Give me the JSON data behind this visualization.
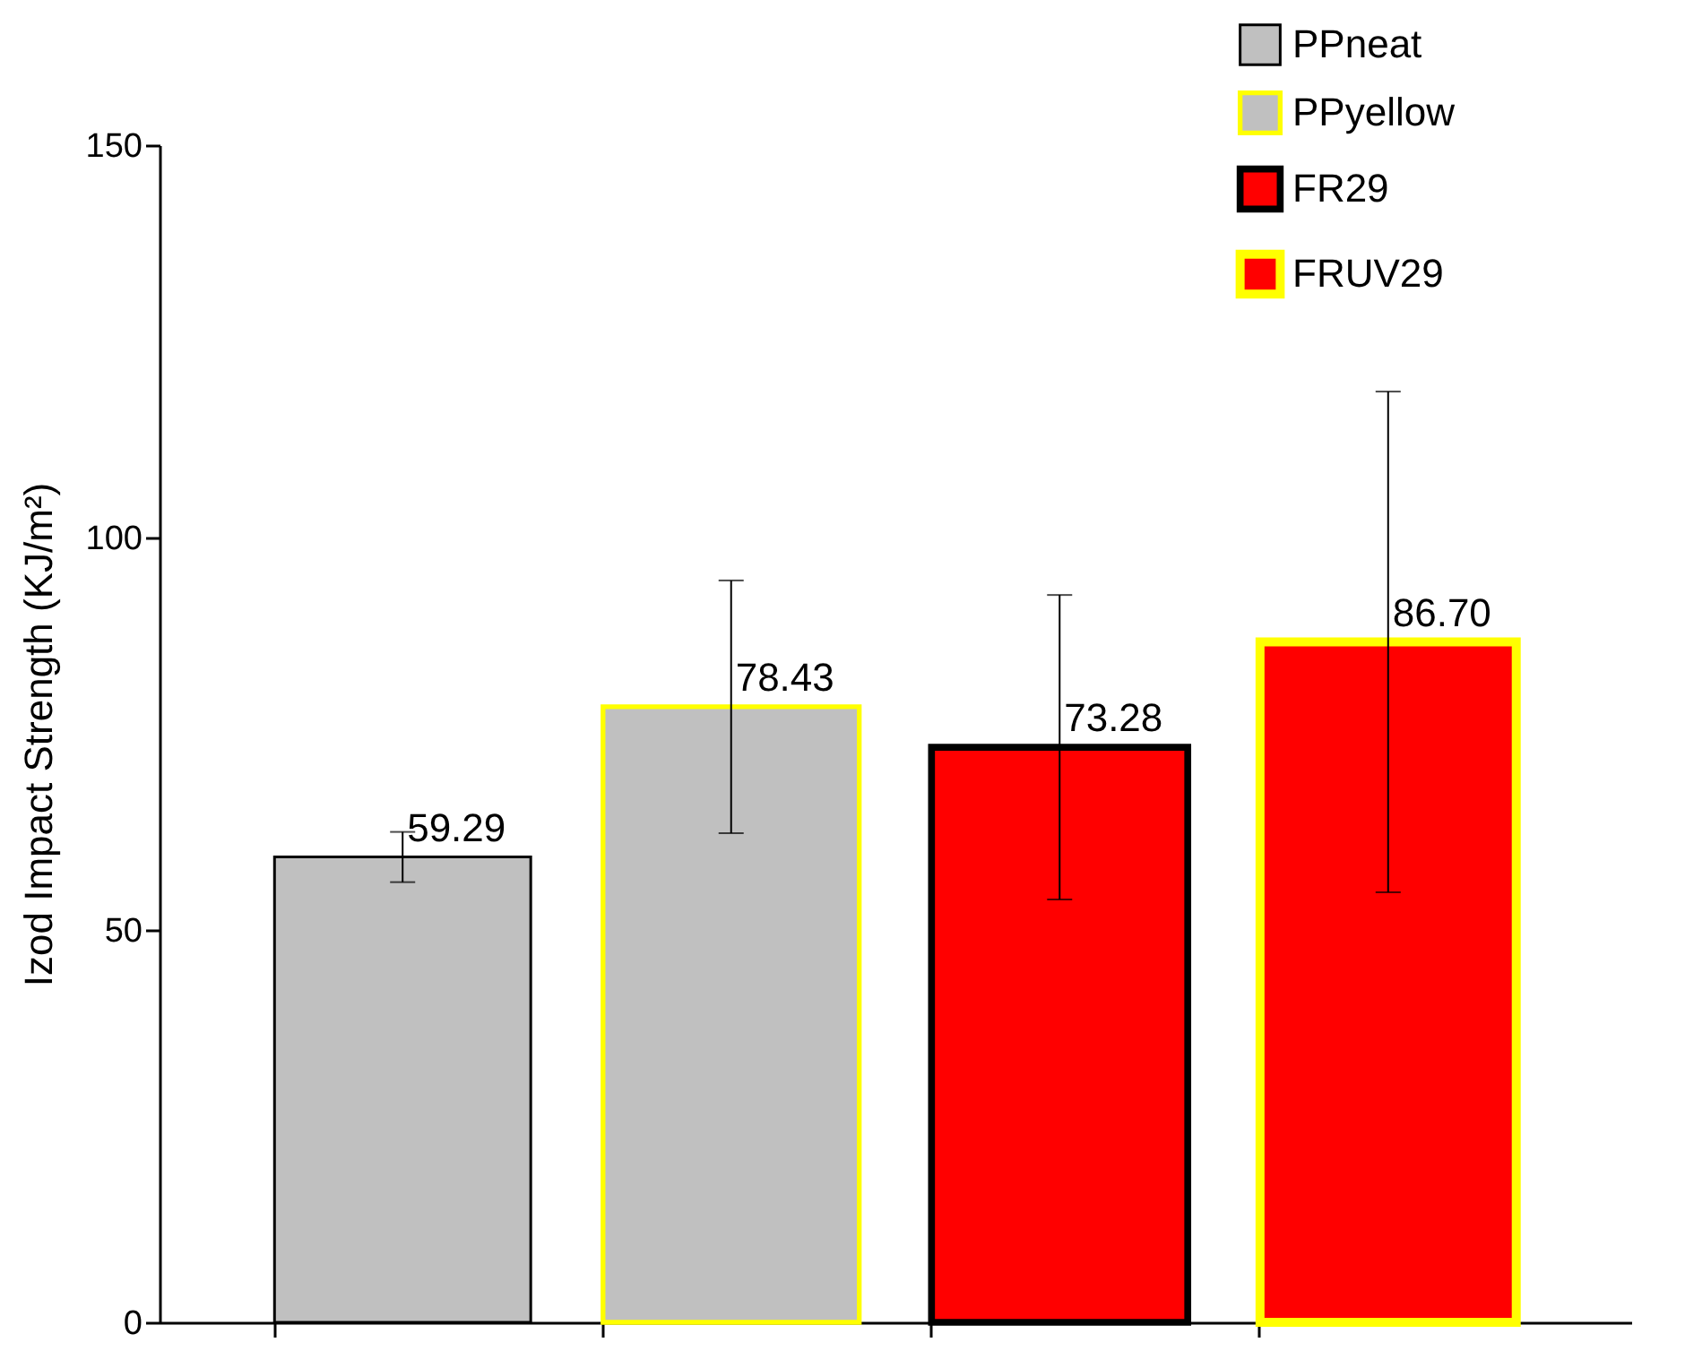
{
  "chart_data": {
    "type": "bar",
    "ylabel": "Izod Impact Strength (KJ/m²)",
    "categories": [
      null,
      null,
      null,
      null
    ],
    "series": [
      {
        "name": "PPneat",
        "color": "#c0c0c0",
        "values": [
          59.29,
          null,
          null,
          null
        ],
        "errors": [
          3.2,
          null,
          null,
          null
        ],
        "value_labels": [
          "59.29",
          null,
          null,
          null
        ]
      },
      {
        "name": "PPyellow",
        "color": "#c0c0c0",
        "values": [
          null,
          78.43,
          null,
          null
        ],
        "errors": [
          null,
          16.1,
          null,
          null
        ],
        "value_labels": [
          null,
          "78.43",
          null,
          null
        ]
      },
      {
        "name": "FR29",
        "color": "#ff0000",
        "values": [
          null,
          null,
          73.28,
          null
        ],
        "errors": [
          null,
          null,
          19.4,
          null
        ],
        "value_labels": [
          null,
          null,
          "73.28",
          null
        ]
      },
      {
        "name": "FRUV29",
        "color": "#ff0000",
        "values": [
          null,
          null,
          null,
          86.7
        ],
        "errors": [
          null,
          null,
          null,
          31.9
        ],
        "value_labels": [
          null,
          null,
          null,
          "86.70"
        ]
      }
    ],
    "ylim": [
      0,
      150
    ],
    "yticks": [
      0,
      50,
      100,
      150
    ],
    "legend": "top right",
    "tick_labels": "y",
    "grid": false
  }
}
